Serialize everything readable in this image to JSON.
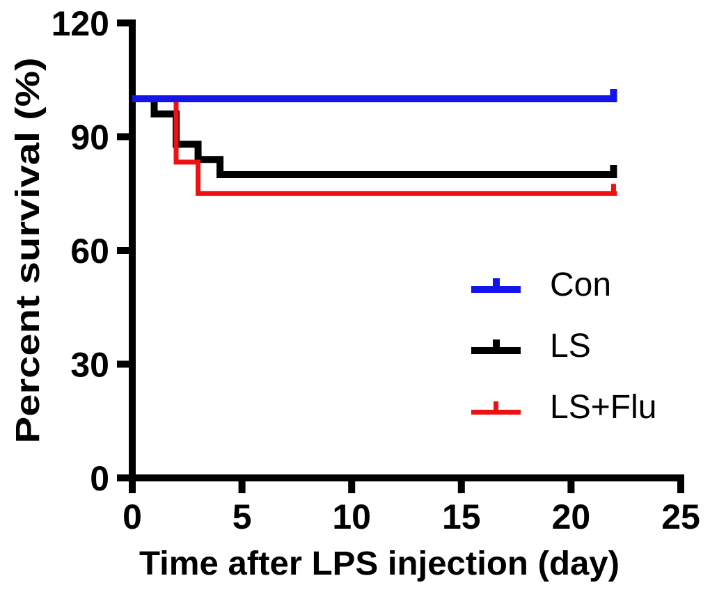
{
  "figure": {
    "background": "#FFFFFF"
  },
  "chart_data": {
    "type": "line",
    "subtype": "kaplan-meier-step-survival",
    "title": "",
    "xlabel": "Time after LPS injection (day)",
    "ylabel": "Percent survival (%)",
    "xlim": [
      0,
      25
    ],
    "ylim": [
      0,
      120
    ],
    "xticks": [
      0,
      5,
      10,
      15,
      20,
      25
    ],
    "yticks": [
      0,
      30,
      60,
      90,
      120
    ],
    "grid": false,
    "axis_color": "#000000",
    "legend_position": "right-middle",
    "series": [
      {
        "name": "LS",
        "color": "#000000",
        "line_width": 10,
        "draw_order": 1,
        "start": [
          0,
          100
        ],
        "drops": [
          [
            1,
            96
          ],
          [
            2,
            88
          ],
          [
            3,
            84
          ],
          [
            4,
            80
          ]
        ],
        "end_day": 22,
        "end_value": 80,
        "censored": true
      },
      {
        "name": "LS+Flu",
        "color": "#EE1111",
        "line_width": 7,
        "draw_order": 2,
        "start": [
          0,
          100
        ],
        "drops": [
          [
            2,
            83.3
          ],
          [
            3,
            75
          ]
        ],
        "end_day": 22,
        "end_value": 75,
        "censored": true
      },
      {
        "name": "Con",
        "color": "#1414EB",
        "line_width": 10,
        "draw_order": 3,
        "start": [
          0,
          100
        ],
        "drops": [],
        "end_day": 22,
        "end_value": 100,
        "censored": true
      }
    ]
  },
  "legend": {
    "items": [
      {
        "label": "Con",
        "color": "#1414EB"
      },
      {
        "label": "LS",
        "color": "#000000"
      },
      {
        "label": "LS+Flu",
        "color": "#EE1111"
      }
    ]
  }
}
